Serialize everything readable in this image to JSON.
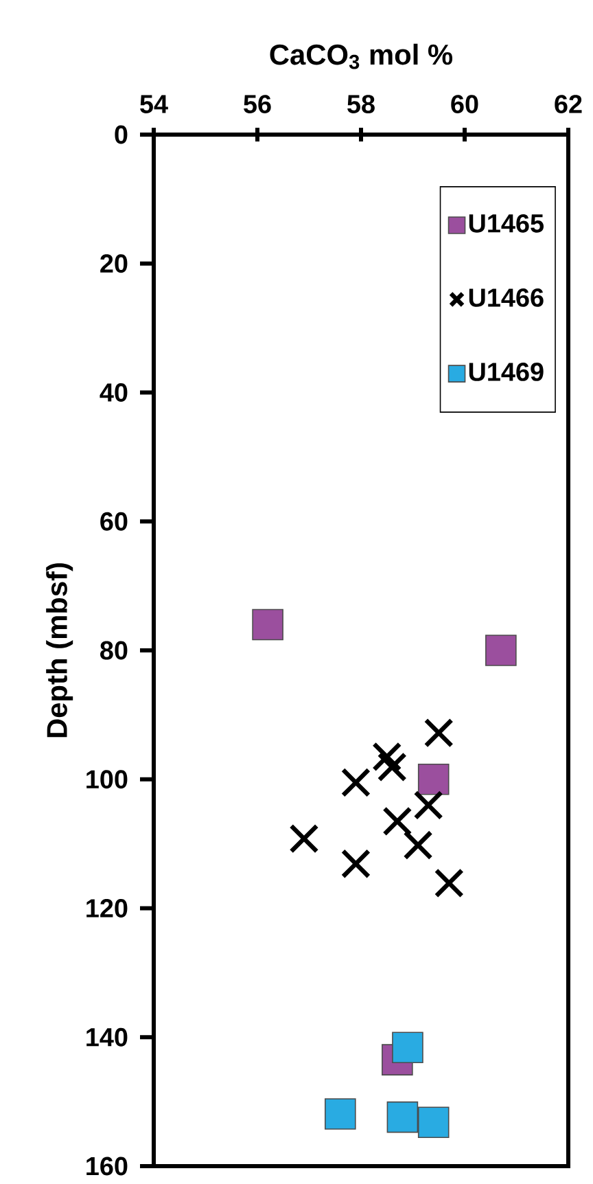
{
  "chart_data": {
    "type": "scatter",
    "xlabel": "CaCO$_{3}$ mol %",
    "ylabel": "Depth (mbsf)",
    "xlim": [
      54,
      62
    ],
    "xticks": [
      54,
      56,
      58,
      60,
      62
    ],
    "ylim": [
      160,
      0
    ],
    "yticks": [
      0,
      20,
      40,
      60,
      80,
      100,
      120,
      140,
      160
    ],
    "grid": false,
    "legend": "top right",
    "series": [
      {
        "name": "U1465",
        "color": "#9b4f9e",
        "marker": "square",
        "x": [
          56.2,
          60.7,
          59.4,
          58.7
        ],
        "values": [
          76,
          80,
          100,
          143.5
        ]
      },
      {
        "name": "U1466",
        "color": "#000000",
        "marker": "cross",
        "x": [
          59.5,
          58.5,
          58.6,
          57.9,
          59.3,
          56.9,
          57.9,
          58.7,
          59.1,
          59.7
        ],
        "values": [
          92.8,
          96.5,
          98.1,
          100.5,
          104,
          109.2,
          113.1,
          106.5,
          110.2,
          116.1
        ]
      },
      {
        "name": "U1469",
        "color": "#29abe2",
        "marker": "square",
        "x": [
          58.9,
          57.6,
          58.8,
          59.4
        ],
        "values": [
          141.6,
          151.9,
          152.4,
          153.2
        ]
      }
    ]
  }
}
